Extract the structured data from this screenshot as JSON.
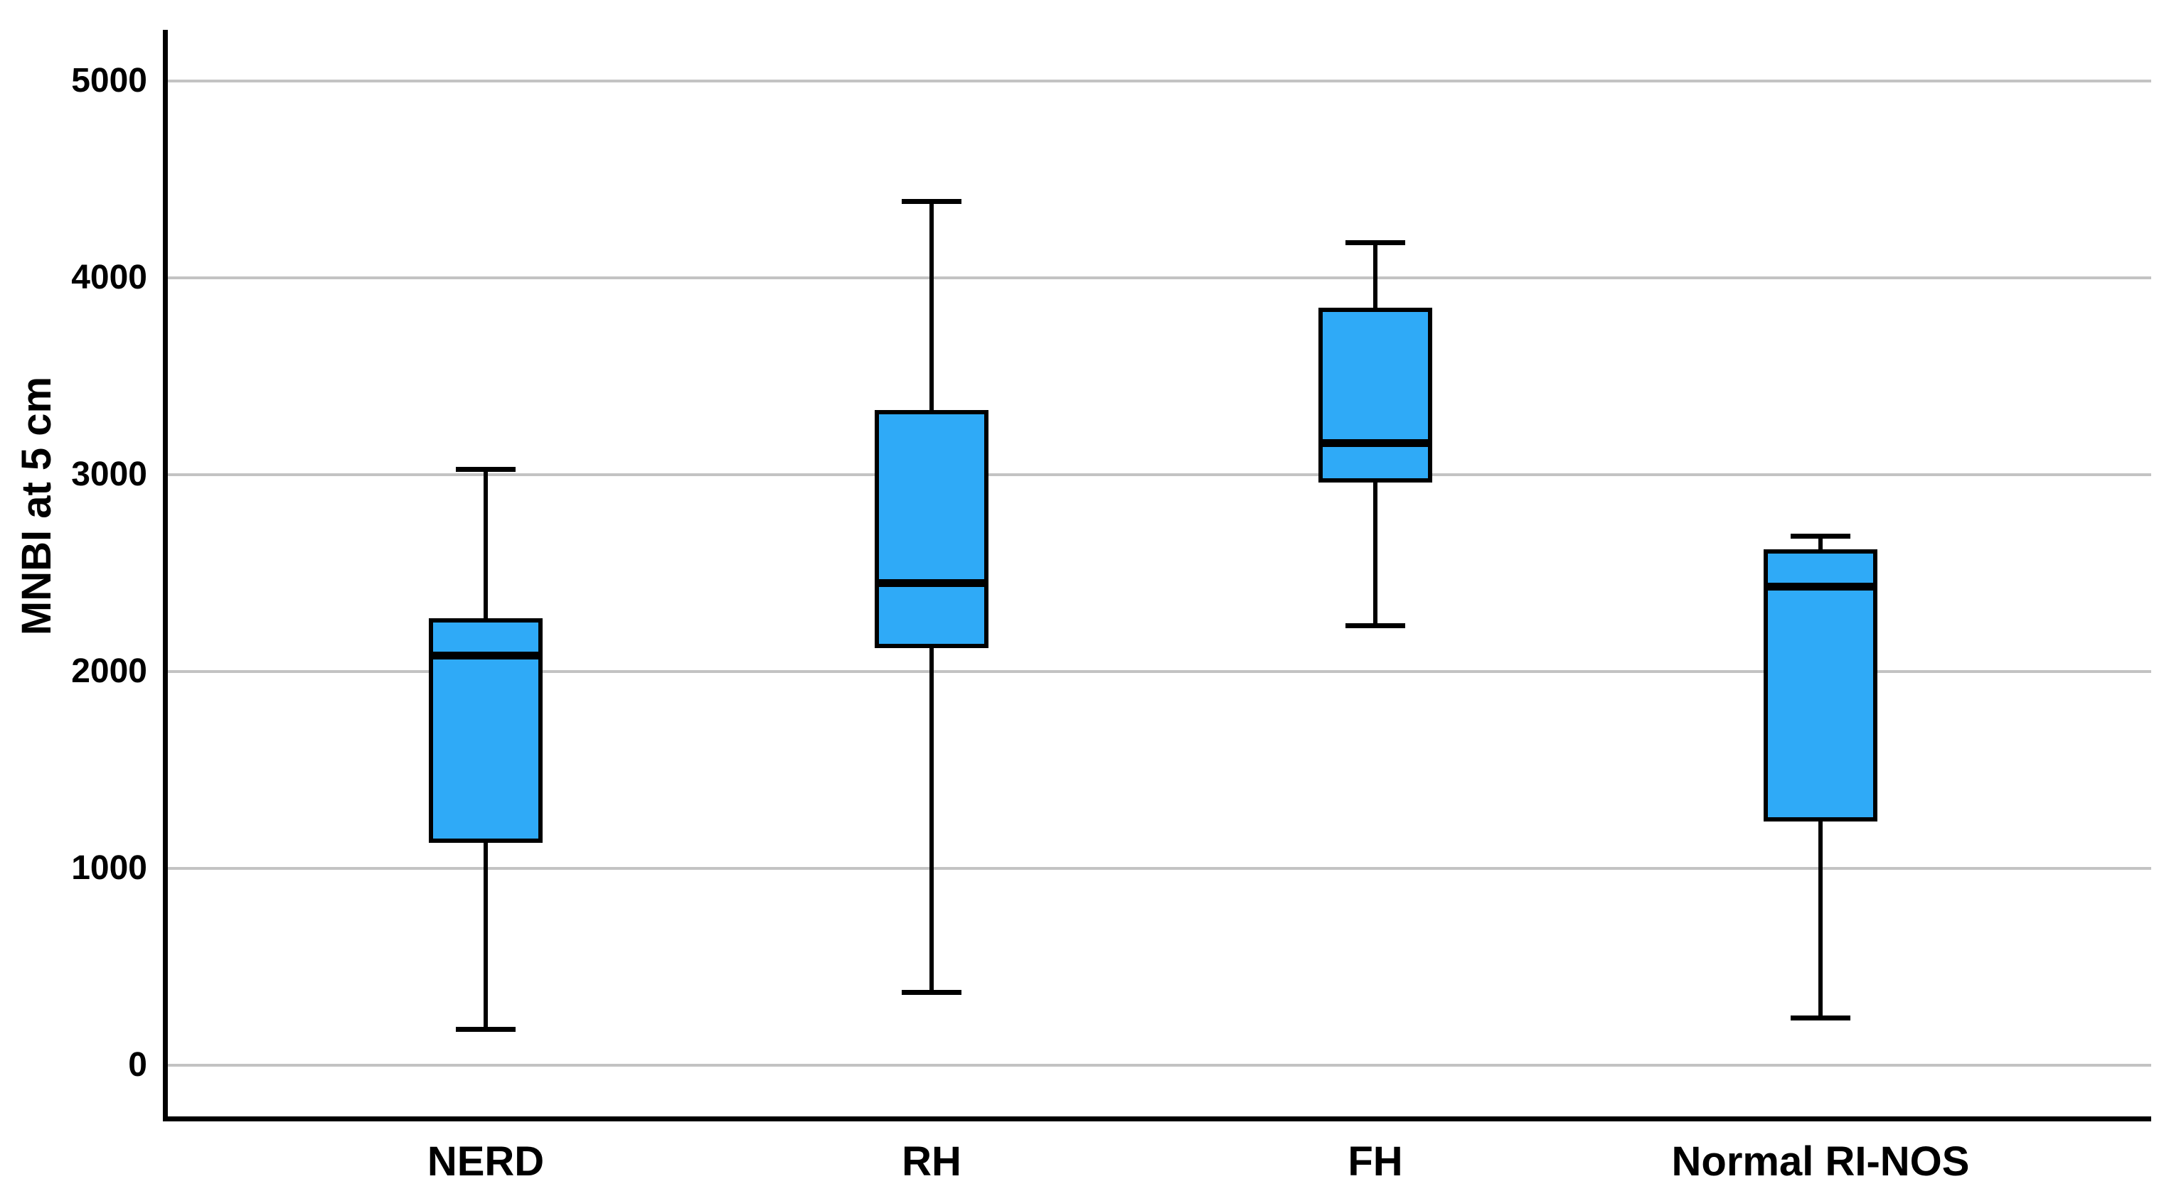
{
  "chart_data": {
    "type": "boxplot",
    "title": "",
    "ylabel": "MNBI at 5 cm",
    "xlabel": "",
    "ylim": [
      0,
      5000
    ],
    "yticks": [
      0,
      1000,
      2000,
      3000,
      4000,
      5000
    ],
    "ytick_labels": [
      "0",
      "1000",
      "2000",
      "3000",
      "4000",
      "5000"
    ],
    "grid": true,
    "legend": false,
    "categories": [
      "NERD",
      "RH",
      "FH",
      "Normal RI-NOS"
    ],
    "stats": [
      {
        "category": "NERD",
        "min": 180,
        "q1": 1130,
        "median": 2080,
        "q3": 2270,
        "max": 3030
      },
      {
        "category": "RH",
        "min": 370,
        "q1": 2120,
        "median": 2450,
        "q3": 3330,
        "max": 4390
      },
      {
        "category": "FH",
        "min": 2230,
        "q1": 2960,
        "median": 3160,
        "q3": 3850,
        "max": 4180
      },
      {
        "category": "Normal RI-NOS",
        "min": 240,
        "q1": 1240,
        "median": 2430,
        "q3": 2620,
        "max": 2690
      }
    ],
    "colors": {
      "box_fill": "#2FAAF7",
      "box_border": "#000000",
      "gridline": "#c3c3c3",
      "axis": "#000000",
      "text": "#000000",
      "background": "#ffffff"
    }
  }
}
